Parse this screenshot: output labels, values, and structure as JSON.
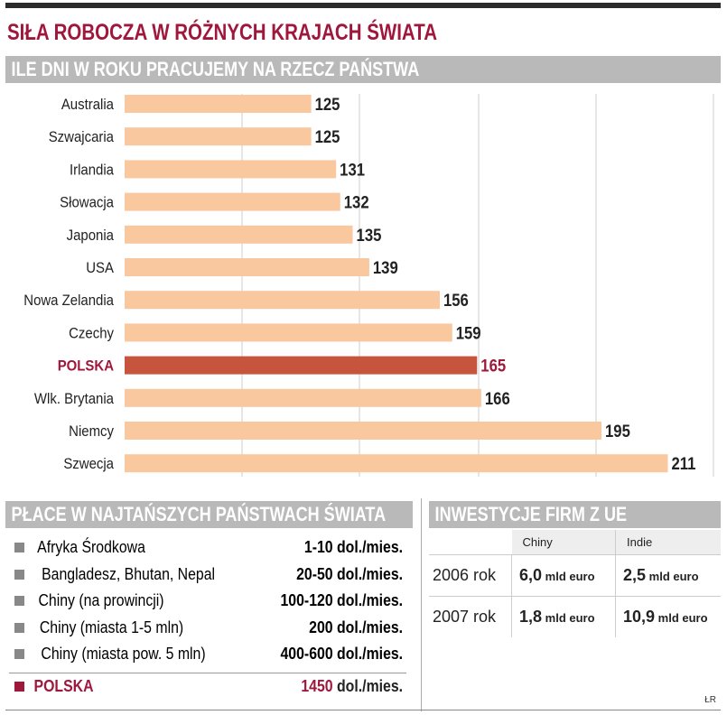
{
  "title": "SIŁA ROBOCZA W RÓŻNYCH KRAJACH ŚWIATA",
  "chart_data": {
    "type": "bar",
    "title": "ILE DNI W ROKU PRACUJEMY NA RZECZ PAŃSTWA",
    "categories": [
      "Australia",
      "Szwajcaria",
      "Irlandia",
      "Słowacja",
      "Japonia",
      "USA",
      "Nowa Zelandia",
      "Czechy",
      "POLSKA",
      "Wlk. Brytania",
      "Niemcy",
      "Szwecja"
    ],
    "values": [
      125,
      125,
      131,
      132,
      135,
      139,
      156,
      159,
      165,
      166,
      195,
      211
    ],
    "highlight": "POLSKA",
    "xlim": [
      80,
      222
    ],
    "colors": {
      "bar": "#f9c89f",
      "highlight": "#c7553e",
      "highlight_text": "#a0173c"
    }
  },
  "wages": {
    "title": "PŁACE W NAJTAŃSZYCH PAŃSTWACH ŚWIATA",
    "rows": [
      {
        "label": "Afryka Środkowa",
        "value": "1-10 dol./mies."
      },
      {
        "label": "Bangladesz, Bhutan, Nepal",
        "value": "20-50 dol./mies."
      },
      {
        "label": "Chiny (na prowincji)",
        "value": "100-120 dol./mies."
      },
      {
        "label": "Chiny (miasta 1-5 mln)",
        "value": "200 dol./mies."
      },
      {
        "label": "Chiny (miasta pow. 5 mln)",
        "value": "400-600 dol./mies."
      }
    ],
    "poland": {
      "label": "POLSKA",
      "number": "1450",
      "unit": " dol./mies."
    }
  },
  "investments": {
    "title": "INWESTYCJE FIRM Z UE",
    "columns": [
      "Chiny",
      "Indie"
    ],
    "unit": " mld euro",
    "rows": [
      {
        "year": "2006 rok",
        "values": [
          "6,0",
          "2,5"
        ]
      },
      {
        "year": "2007 rok",
        "values": [
          "1,8",
          "10,9"
        ]
      }
    ]
  },
  "credit": "ŁR"
}
